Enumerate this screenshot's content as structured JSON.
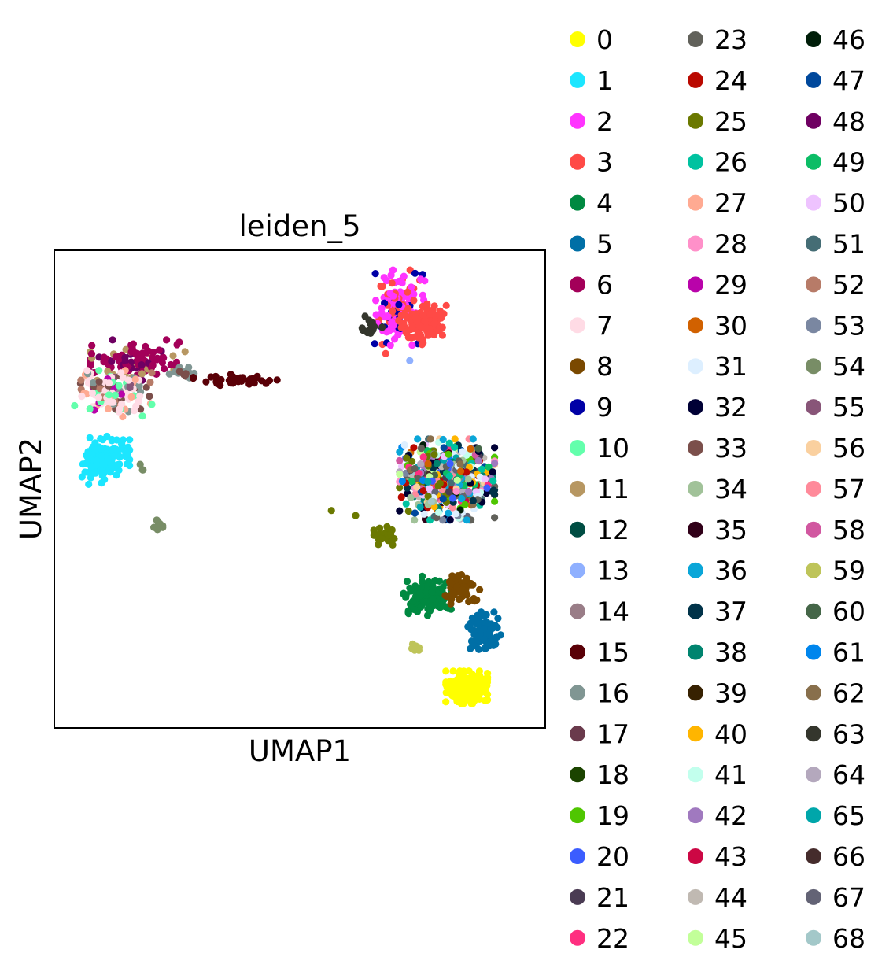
{
  "chart_data": {
    "type": "scatter",
    "title": "leiden_5",
    "xlabel": "UMAP1",
    "ylabel": "UMAP2",
    "xlim": [
      0,
      100
    ],
    "ylim": [
      0,
      100
    ],
    "x_ticks_shown": false,
    "y_ticks_shown": false,
    "grid": false,
    "legend_position": "right",
    "legend_columns": 3,
    "categories": [
      {
        "label": "0",
        "color": "#ffff00"
      },
      {
        "label": "1",
        "color": "#1ce6ff"
      },
      {
        "label": "2",
        "color": "#ff34ff"
      },
      {
        "label": "3",
        "color": "#ff4a46"
      },
      {
        "label": "4",
        "color": "#008941"
      },
      {
        "label": "5",
        "color": "#006fa6"
      },
      {
        "label": "6",
        "color": "#a30059"
      },
      {
        "label": "7",
        "color": "#ffdbe5"
      },
      {
        "label": "8",
        "color": "#7a4900"
      },
      {
        "label": "9",
        "color": "#0000a6"
      },
      {
        "label": "10",
        "color": "#63ffac"
      },
      {
        "label": "11",
        "color": "#b79762"
      },
      {
        "label": "12",
        "color": "#004d43"
      },
      {
        "label": "13",
        "color": "#8fb0ff"
      },
      {
        "label": "14",
        "color": "#997d87"
      },
      {
        "label": "15",
        "color": "#5a0007"
      },
      {
        "label": "16",
        "color": "#809693"
      },
      {
        "label": "17",
        "color": "#6a3a4c"
      },
      {
        "label": "18",
        "color": "#1b4400"
      },
      {
        "label": "19",
        "color": "#4fc601"
      },
      {
        "label": "20",
        "color": "#3b5dff"
      },
      {
        "label": "21",
        "color": "#4a3b53"
      },
      {
        "label": "22",
        "color": "#ff2f80"
      },
      {
        "label": "23",
        "color": "#61615a"
      },
      {
        "label": "24",
        "color": "#ba0900"
      },
      {
        "label": "25",
        "color": "#6b7900"
      },
      {
        "label": "26",
        "color": "#00c2a0"
      },
      {
        "label": "27",
        "color": "#ffaa92"
      },
      {
        "label": "28",
        "color": "#ff90c9"
      },
      {
        "label": "29",
        "color": "#b903aa"
      },
      {
        "label": "30",
        "color": "#d16100"
      },
      {
        "label": "31",
        "color": "#ddefff"
      },
      {
        "label": "32",
        "color": "#000035"
      },
      {
        "label": "33",
        "color": "#7b4f4b"
      },
      {
        "label": "34",
        "color": "#a1c299"
      },
      {
        "label": "35",
        "color": "#300018"
      },
      {
        "label": "36",
        "color": "#0aa6d8"
      },
      {
        "label": "37",
        "color": "#013349"
      },
      {
        "label": "38",
        "color": "#00846f"
      },
      {
        "label": "39",
        "color": "#372101"
      },
      {
        "label": "40",
        "color": "#ffb500"
      },
      {
        "label": "41",
        "color": "#c2ffed"
      },
      {
        "label": "42",
        "color": "#a079bf"
      },
      {
        "label": "43",
        "color": "#cc0744"
      },
      {
        "label": "44",
        "color": "#c0b9b2"
      },
      {
        "label": "45",
        "color": "#c2ff99"
      },
      {
        "label": "46",
        "color": "#001e09"
      },
      {
        "label": "47",
        "color": "#00489c"
      },
      {
        "label": "48",
        "color": "#6f0062"
      },
      {
        "label": "49",
        "color": "#0cbd66"
      },
      {
        "label": "50",
        "color": "#eec3ff"
      },
      {
        "label": "51",
        "color": "#456d75"
      },
      {
        "label": "52",
        "color": "#b77b68"
      },
      {
        "label": "53",
        "color": "#7a87a1"
      },
      {
        "label": "54",
        "color": "#788d66"
      },
      {
        "label": "55",
        "color": "#885578"
      },
      {
        "label": "56",
        "color": "#fad09f"
      },
      {
        "label": "57",
        "color": "#ff8a9a"
      },
      {
        "label": "58",
        "color": "#d157a0"
      },
      {
        "label": "59",
        "color": "#bec459"
      },
      {
        "label": "60",
        "color": "#456648"
      },
      {
        "label": "61",
        "color": "#0086ed"
      },
      {
        "label": "62",
        "color": "#886f4c"
      },
      {
        "label": "63",
        "color": "#34362d"
      },
      {
        "label": "64",
        "color": "#b4a8bd"
      },
      {
        "label": "65",
        "color": "#00a6aa"
      },
      {
        "label": "66",
        "color": "#452c2c"
      },
      {
        "label": "67",
        "color": "#636375"
      },
      {
        "label": "68",
        "color": "#a3c8c9"
      }
    ],
    "cluster_groups": [
      {
        "cx": 70,
        "cy": 88,
        "sx": 4.5,
        "sy": 6.5,
        "n": 140,
        "mix": {
          "2": 0.5,
          "9": 0.2,
          "3": 0.3
        }
      },
      {
        "cx": 75,
        "cy": 84.5,
        "sx": 4,
        "sy": 3.5,
        "n": 110,
        "mix": {
          "3": 1
        }
      },
      {
        "cx": 64.5,
        "cy": 84,
        "sx": 2,
        "sy": 1.8,
        "n": 14,
        "mix": {
          "63": 1
        }
      },
      {
        "cx": 17,
        "cy": 77,
        "sx": 8,
        "sy": 3.5,
        "n": 120,
        "mix": {
          "6": 0.7,
          "11": 0.15,
          "48": 0.15
        }
      },
      {
        "cx": 12,
        "cy": 70,
        "sx": 6.5,
        "sy": 4,
        "n": 140,
        "mix": {
          "7": 0.35,
          "10": 0.15,
          "27": 0.15,
          "33": 0.1,
          "16": 0.08,
          "52": 0.07,
          "29": 0.05,
          "55": 0.05
        }
      },
      {
        "cx": 10.5,
        "cy": 56,
        "sx": 4,
        "sy": 4.5,
        "n": 130,
        "mix": {
          "1": 1
        }
      },
      {
        "cx": 26,
        "cy": 74.3,
        "sx": 2.5,
        "sy": 1.0,
        "n": 18,
        "mix": {
          "16": 0.5,
          "33": 0.5
        }
      },
      {
        "cx": 38,
        "cy": 72.8,
        "sx": 8,
        "sy": 1.0,
        "n": 36,
        "mix": {
          "15": 1
        }
      },
      {
        "cx": 21,
        "cy": 42.5,
        "sx": 0.9,
        "sy": 1.4,
        "n": 9,
        "mix": {
          "54": 1
        }
      },
      {
        "cx": 19,
        "cy": 54,
        "sx": 1.3,
        "sy": 1.0,
        "n": 3,
        "mix": {
          "54": 1
        }
      },
      {
        "cx": 80,
        "cy": 52,
        "sx": 8,
        "sy": 7,
        "n": 620,
        "mix": {
          "19": 0.05,
          "20": 0.04,
          "21": 0.04,
          "22": 0.04,
          "23": 0.04,
          "24": 0.05,
          "25": 0.03,
          "26": 0.04,
          "28": 0.05,
          "30": 0.03,
          "31": 0.04,
          "32": 0.04,
          "34": 0.04,
          "35": 0.03,
          "36": 0.05,
          "37": 0.04,
          "38": 0.04,
          "40": 0.03,
          "41": 0.03,
          "42": 0.03,
          "43": 0.03,
          "44": 0.03,
          "45": 0.03,
          "46": 0.03,
          "47": 0.03,
          "49": 0.03,
          "50": 0.03,
          "51": 0.03,
          "53": 0.03,
          "56": 0.02,
          "57": 0.02,
          "58": 0.02,
          "60": 0.02,
          "61": 0.02,
          "62": 0.02,
          "64": 0.02,
          "65": 0.02,
          "66": 0.02,
          "67": 0.02,
          "68": 0.02
        }
      },
      {
        "cx": 67.5,
        "cy": 40.5,
        "sx": 2,
        "sy": 1.8,
        "n": 30,
        "mix": {
          "25": 1
        }
      },
      {
        "cx": 76,
        "cy": 27.5,
        "sx": 4,
        "sy": 3.5,
        "n": 120,
        "mix": {
          "4": 1
        }
      },
      {
        "cx": 83,
        "cy": 29,
        "sx": 3,
        "sy": 2.5,
        "n": 60,
        "mix": {
          "8": 1
        }
      },
      {
        "cx": 87.5,
        "cy": 20,
        "sx": 3,
        "sy": 3.5,
        "n": 95,
        "mix": {
          "5": 1
        }
      },
      {
        "cx": 84,
        "cy": 8.5,
        "sx": 3.5,
        "sy": 2.8,
        "n": 190,
        "mix": {
          "0": 1
        }
      },
      {
        "cx": 73.8,
        "cy": 16.5,
        "sx": 0.8,
        "sy": 1.3,
        "n": 7,
        "mix": {
          "59": 1
        }
      },
      {
        "cx": 56.5,
        "cy": 45.5,
        "sx": 0.2,
        "sy": 0.2,
        "n": 1,
        "mix": {
          "25": 1
        }
      },
      {
        "cx": 61.5,
        "cy": 44.5,
        "sx": 0.2,
        "sy": 0.2,
        "n": 1,
        "mix": {
          "25": 1
        }
      },
      {
        "cx": 67.5,
        "cy": 78.3,
        "sx": 0.2,
        "sy": 0.2,
        "n": 1,
        "mix": {
          "3": 1
        }
      },
      {
        "cx": 72.5,
        "cy": 76.8,
        "sx": 0.2,
        "sy": 0.2,
        "n": 1,
        "mix": {
          "13": 1
        }
      }
    ]
  }
}
